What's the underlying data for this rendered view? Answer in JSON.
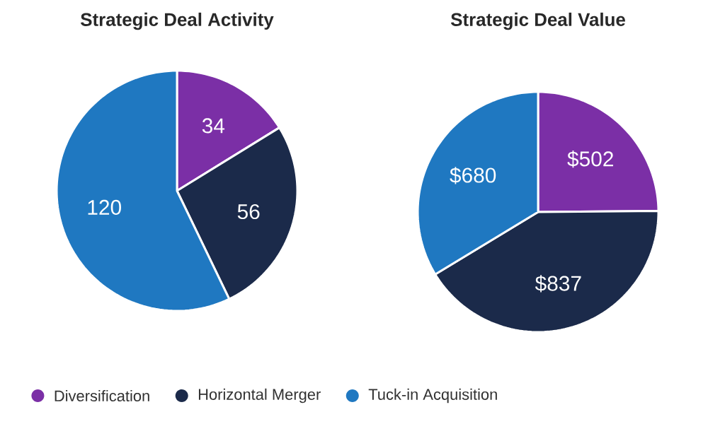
{
  "chart_data": [
    {
      "type": "pie",
      "title": "Strategic Deal Activity",
      "categories": [
        "Diversification",
        "Horizontal Merger",
        "Tuck-in Acquisition"
      ],
      "values": [
        34,
        56,
        120
      ],
      "colors": [
        "#7b2fa6",
        "#1b2a4a",
        "#1f78c1"
      ],
      "data_labels": true,
      "legend": "bottom"
    },
    {
      "type": "pie",
      "title": "Strategic Deal Value",
      "categories": [
        null,
        null,
        null
      ],
      "values": [
        502,
        837,
        680
      ],
      "colors": [
        "#7b2fa6",
        "#1b2a4a",
        "#1f78c1"
      ],
      "value_labels": [
        "$502",
        "$837",
        "$680"
      ]
    }
  ]
}
